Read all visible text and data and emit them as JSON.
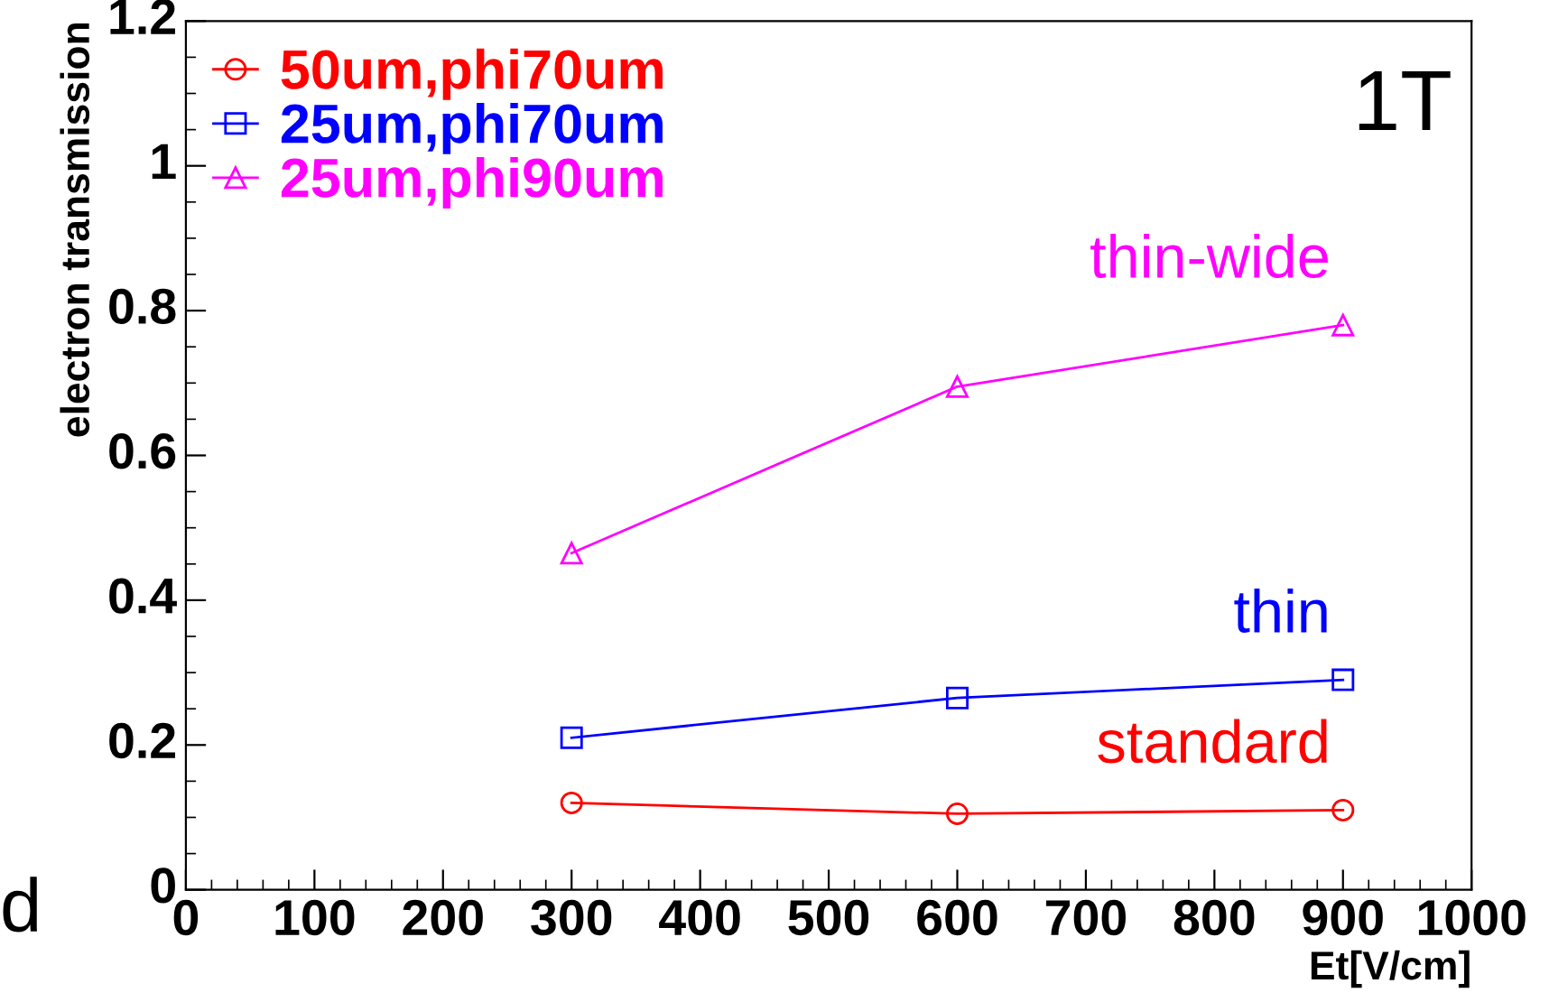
{
  "chart_data": {
    "type": "line",
    "xlabel": "Et[V/cm]",
    "ylabel": "electron transmission",
    "xlim": [
      0,
      1000
    ],
    "xticks": [
      0,
      100,
      200,
      300,
      400,
      500,
      600,
      700,
      800,
      900,
      1000
    ],
    "ylim": [
      0,
      1.2
    ],
    "yticks": [
      0,
      0.2,
      0.4,
      0.6,
      0.8,
      1,
      1.2
    ],
    "x": [
      300,
      600,
      900
    ],
    "series": [
      {
        "name": "50um,phi70um",
        "color": "#ff0000",
        "marker": "circle",
        "values": [
          0.12,
          0.105,
          0.11
        ]
      },
      {
        "name": "25um,phi70um",
        "color": "#0000ff",
        "marker": "square",
        "values": [
          0.21,
          0.265,
          0.29
        ]
      },
      {
        "name": "25um,phi90um",
        "color": "#ff00ff",
        "marker": "triangle",
        "values": [
          0.465,
          0.695,
          0.78
        ]
      }
    ],
    "annotations": [
      "1T",
      "d",
      "thin-wide",
      "thin",
      "standard"
    ],
    "legend": "top left",
    "grid": false,
    "line_style": "solid"
  }
}
